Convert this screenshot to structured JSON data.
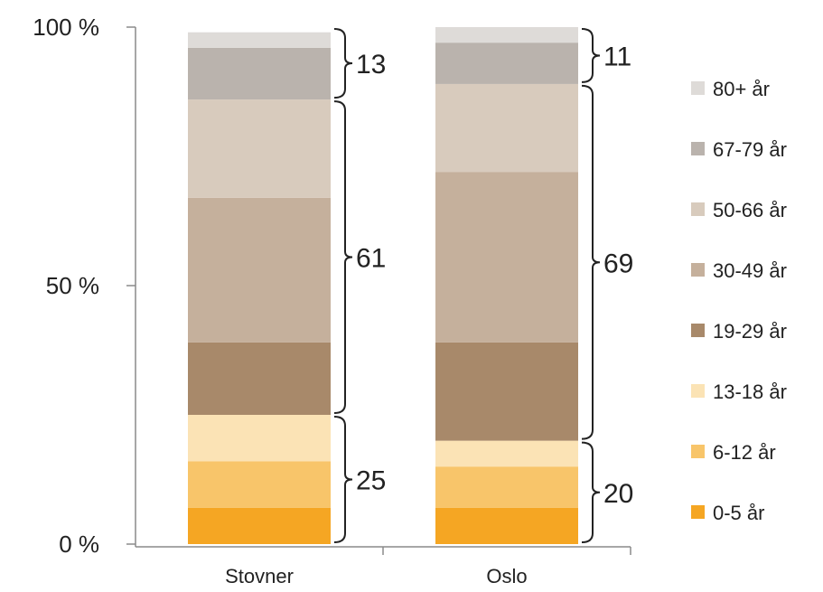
{
  "chart_data": {
    "type": "bar",
    "stacked": true,
    "title": "",
    "xlabel": "",
    "ylabel": "",
    "categories": [
      "Stovner",
      "Oslo"
    ],
    "y_ticks": [
      "0 %",
      "50 %",
      "100 %"
    ],
    "ylim": [
      0,
      100
    ],
    "series": [
      {
        "name": "0-5 år",
        "color": "#f5a623",
        "values": [
          7,
          7
        ]
      },
      {
        "name": "6-12 år",
        "color": "#f8c56a",
        "values": [
          9,
          8
        ]
      },
      {
        "name": "13-18 år",
        "color": "#fbe3b5",
        "values": [
          9,
          5
        ]
      },
      {
        "name": "19-29 år",
        "color": "#a8896a",
        "values": [
          14,
          19
        ]
      },
      {
        "name": "30-49 år",
        "color": "#c5b09c",
        "values": [
          28,
          33
        ]
      },
      {
        "name": "50-66 år",
        "color": "#d8cbbd",
        "values": [
          19,
          17
        ]
      },
      {
        "name": "67-79 år",
        "color": "#bab3ad",
        "values": [
          10,
          8
        ]
      },
      {
        "name": "80+ år",
        "color": "#dedbd8",
        "values": [
          3,
          3
        ]
      }
    ],
    "group_brackets": [
      {
        "category": "Stovner",
        "labels": [
          "25",
          "61",
          "13"
        ],
        "ranges": [
          [
            0,
            25
          ],
          [
            25,
            86
          ],
          [
            86,
            100
          ]
        ]
      },
      {
        "category": "Oslo",
        "labels": [
          "20",
          "69",
          "11"
        ],
        "ranges": [
          [
            0,
            20
          ],
          [
            20,
            89
          ],
          [
            89,
            100
          ]
        ]
      }
    ],
    "legend_position": "right",
    "grid": false
  }
}
